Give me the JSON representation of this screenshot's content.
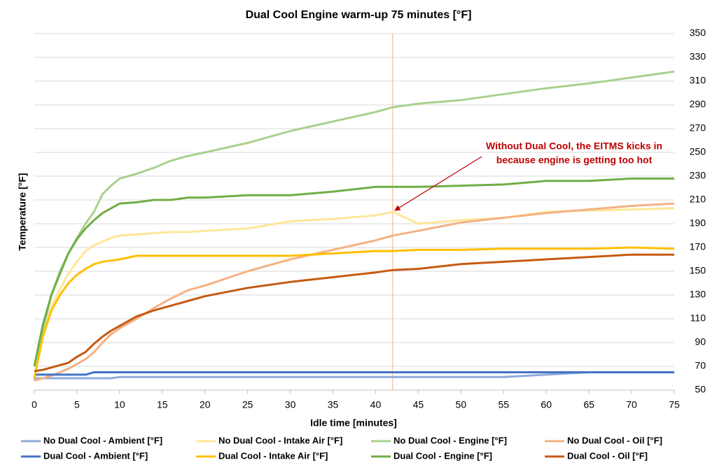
{
  "chart_data": {
    "type": "line",
    "title": "Dual Cool Engine warm-up 75 minutes [°F]",
    "x_label": "Idle time [minutes]",
    "y_label": "Temperature [°F]",
    "x": [
      0,
      1,
      2,
      3,
      4,
      5,
      6,
      7,
      8,
      9,
      10,
      12,
      14,
      16,
      18,
      20,
      25,
      30,
      35,
      40,
      42,
      45,
      50,
      55,
      60,
      65,
      70,
      75
    ],
    "xlim": [
      0,
      75
    ],
    "xticks": [
      0,
      5,
      10,
      15,
      20,
      25,
      30,
      35,
      40,
      45,
      50,
      55,
      60,
      65,
      70,
      75
    ],
    "ylim": [
      50,
      350
    ],
    "yticks": [
      50,
      70,
      90,
      110,
      130,
      150,
      170,
      190,
      210,
      230,
      250,
      270,
      290,
      310,
      330,
      350
    ],
    "grid": true,
    "y_axis_side": "right",
    "legend": "bottom",
    "series": [
      {
        "name": "No Dual Cool - Ambient [°F]",
        "color": "#8faadc",
        "values": [
          60,
          60,
          60,
          60,
          60,
          60,
          60,
          60,
          60,
          60,
          61,
          61,
          61,
          61,
          61,
          61,
          61,
          61,
          61,
          61,
          61,
          61,
          61,
          61,
          63,
          65,
          65,
          65
        ]
      },
      {
        "name": "No Dual Cool - Intake Air [°F]",
        "color": "#ffe699",
        "values": [
          60,
          95,
          120,
          135,
          148,
          158,
          167,
          172,
          175,
          178,
          180,
          181,
          182,
          183,
          183,
          184,
          186,
          192,
          194,
          197,
          200,
          190,
          193,
          195,
          200,
          201,
          202,
          203
        ]
      },
      {
        "name": "No Dual Cool - Engine [°F]",
        "color": "#a9d18e",
        "values": [
          58,
          100,
          130,
          150,
          165,
          178,
          190,
          200,
          215,
          222,
          228,
          232,
          237,
          243,
          247,
          250,
          258,
          268,
          276,
          284,
          288,
          291,
          294,
          299,
          304,
          308,
          313,
          318
        ]
      },
      {
        "name": "No Dual Cool - Oil [°F]",
        "color": "#f4b183",
        "values": [
          58,
          60,
          62,
          65,
          68,
          72,
          76,
          82,
          90,
          97,
          102,
          110,
          119,
          127,
          134,
          138,
          150,
          160,
          168,
          176,
          180,
          184,
          191,
          195,
          199,
          202,
          205,
          207
        ]
      },
      {
        "name": "Dual Cool - Ambient [°F]",
        "color": "#4472c4",
        "values": [
          63,
          63,
          63,
          63,
          63,
          63,
          63,
          65,
          65,
          65,
          65,
          65,
          65,
          65,
          65,
          65,
          65,
          65,
          65,
          65,
          65,
          65,
          65,
          65,
          65,
          65,
          65,
          65
        ]
      },
      {
        "name": "Dual Cool - Intake Air [°F]",
        "color": "#ffc000",
        "values": [
          60,
          95,
          117,
          130,
          140,
          147,
          152,
          156,
          158,
          159,
          160,
          163,
          163,
          163,
          163,
          163,
          163,
          163,
          165,
          167,
          167,
          168,
          168,
          169,
          169,
          169,
          170,
          169
        ]
      },
      {
        "name": "Dual Cool - Engine [°F]",
        "color": "#70ad47",
        "values": [
          70,
          105,
          130,
          148,
          165,
          177,
          186,
          193,
          199,
          203,
          207,
          208,
          210,
          210,
          212,
          212,
          214,
          214,
          217,
          221,
          221,
          221,
          222,
          223,
          226,
          226,
          228,
          228
        ]
      },
      {
        "name": "Dual Cool - Oil [°F]",
        "color": "#c55a11",
        "values": [
          66,
          67,
          69,
          71,
          73,
          78,
          82,
          89,
          95,
          100,
          104,
          112,
          117,
          121,
          125,
          129,
          136,
          141,
          145,
          149,
          151,
          152,
          156,
          158,
          160,
          162,
          164,
          164
        ]
      }
    ],
    "vline_x": 42,
    "vline_color": "#f4b183",
    "annotation": {
      "lines": [
        "Without Dual Cool, the EITMS kicks in",
        "because engine is getting too hot"
      ],
      "x": 42,
      "y": 200,
      "color": "#c00000"
    }
  }
}
